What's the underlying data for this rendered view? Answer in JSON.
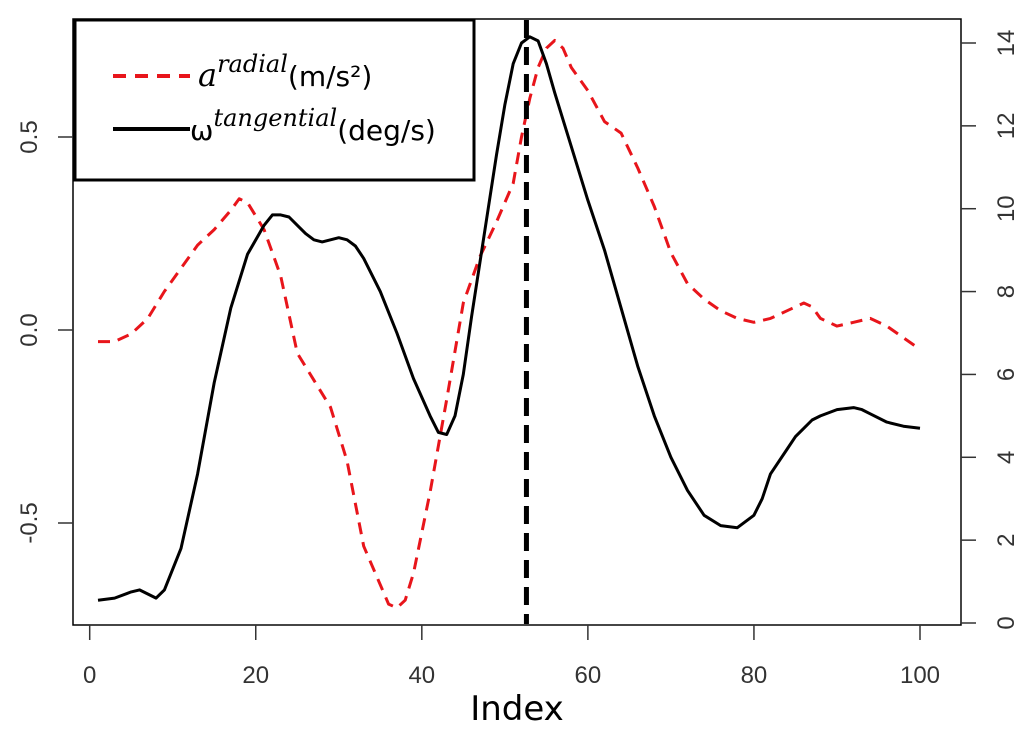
{
  "chart_data": {
    "type": "line",
    "xlabel": "Index",
    "ylabel_left": "",
    "ylabel_right": "",
    "xlim": [
      0,
      101
    ],
    "ylim_left": [
      -0.75,
      0.77
    ],
    "ylim_right": [
      0,
      14.5
    ],
    "x_ticks": [
      0,
      20,
      40,
      60,
      80,
      100
    ],
    "y_left_ticks": [
      -0.5,
      0.0,
      0.5
    ],
    "y_left_tick_labels": [
      "-0.5",
      "0.0",
      "0.5"
    ],
    "y_right_ticks": [
      0,
      2,
      4,
      6,
      8,
      10,
      12,
      14
    ],
    "vline_x": 52.6,
    "legend_position": "top-left",
    "series": [
      {
        "name": "a^radial (m/s²)",
        "axis": "left",
        "color": "#e8151b",
        "style": "dashed",
        "x": [
          1,
          3,
          5,
          7,
          9,
          11,
          13,
          15,
          17,
          18,
          19,
          21,
          23,
          25,
          27,
          29,
          31,
          33,
          35,
          36,
          37,
          38,
          39,
          41,
          43,
          45,
          47,
          49,
          51,
          52,
          53,
          54,
          55,
          56,
          57,
          58,
          60,
          62,
          64,
          66,
          68,
          70,
          72,
          74,
          76,
          78,
          80,
          82,
          84,
          86,
          87,
          88,
          90,
          92,
          94,
          96,
          98,
          100
        ],
        "values": [
          -0.03,
          -0.03,
          -0.01,
          0.03,
          0.1,
          0.16,
          0.22,
          0.26,
          0.31,
          0.34,
          0.33,
          0.26,
          0.14,
          -0.06,
          -0.13,
          -0.2,
          -0.34,
          -0.56,
          -0.66,
          -0.71,
          -0.72,
          -0.7,
          -0.63,
          -0.42,
          -0.18,
          0.07,
          0.19,
          0.28,
          0.38,
          0.5,
          0.6,
          0.68,
          0.73,
          0.75,
          0.73,
          0.68,
          0.62,
          0.54,
          0.51,
          0.42,
          0.32,
          0.2,
          0.12,
          0.08,
          0.05,
          0.03,
          0.02,
          0.03,
          0.05,
          0.07,
          0.06,
          0.03,
          0.01,
          0.02,
          0.03,
          0.01,
          -0.02,
          -0.05
        ]
      },
      {
        "name": "ω^tangential (deg/s)",
        "axis": "right",
        "color": "#000000",
        "style": "solid",
        "x": [
          1,
          3,
          5,
          6,
          7,
          8,
          9,
          11,
          13,
          15,
          17,
          19,
          21,
          22,
          23,
          24,
          25,
          26,
          27,
          28,
          29,
          30,
          31,
          32,
          33,
          35,
          37,
          39,
          41,
          42,
          43,
          44,
          45,
          46,
          47,
          48,
          49,
          50,
          51,
          52,
          53,
          54,
          55,
          56,
          58,
          60,
          62,
          64,
          66,
          68,
          70,
          72,
          74,
          76,
          78,
          80,
          81,
          82,
          84,
          85,
          86,
          87,
          88,
          90,
          92,
          93,
          94,
          96,
          98,
          100
        ],
        "values": [
          0.55,
          0.6,
          0.75,
          0.8,
          0.7,
          0.6,
          0.8,
          1.8,
          3.6,
          5.8,
          7.6,
          8.9,
          9.6,
          9.85,
          9.85,
          9.8,
          9.6,
          9.4,
          9.25,
          9.2,
          9.25,
          9.3,
          9.25,
          9.1,
          8.8,
          8.0,
          7.0,
          5.9,
          5.0,
          4.6,
          4.55,
          5.0,
          6.0,
          7.4,
          8.7,
          10.0,
          11.3,
          12.5,
          13.5,
          14.0,
          14.15,
          14.05,
          13.5,
          12.8,
          11.5,
          10.2,
          9.0,
          7.6,
          6.2,
          5.0,
          4.0,
          3.2,
          2.6,
          2.35,
          2.3,
          2.6,
          3.0,
          3.6,
          4.2,
          4.5,
          4.7,
          4.9,
          5.0,
          5.15,
          5.2,
          5.15,
          5.05,
          4.85,
          4.75,
          4.7
        ]
      }
    ]
  },
  "legend": {
    "radial": {
      "symbol": "a",
      "sup": "radial",
      "unit": "(m/s²)"
    },
    "tangential": {
      "symbol": "ω",
      "sup": "tangential",
      "unit": "(deg/s)"
    }
  }
}
